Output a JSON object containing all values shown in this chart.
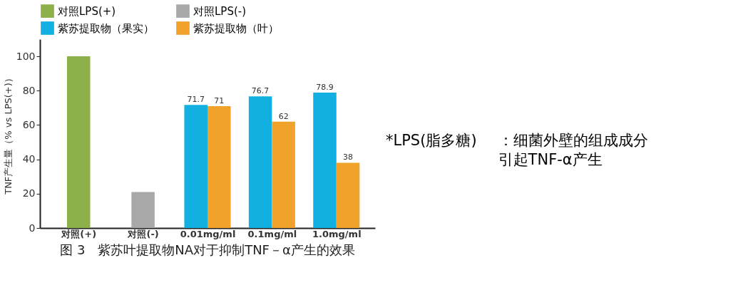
{
  "chart_data": {
    "type": "bar",
    "title": "图 3　紫苏叶提取物NA对于抑制TNF－α产生的效果",
    "ylabel": "TNF产生量（% vs LPS(+)）",
    "categories": [
      "对照(+)",
      "对照(-)",
      "0.01mg/ml",
      "0.1mg/ml",
      "1.0mg/ml"
    ],
    "series": [
      {
        "name": "对照LPS(+)",
        "color": "#8db04a",
        "values": [
          100,
          null,
          null,
          null,
          null
        ]
      },
      {
        "name": "对照LPS(-)",
        "color": "#a8a8a8",
        "values": [
          null,
          21,
          null,
          null,
          null
        ]
      },
      {
        "name": "紫苏提取物（果实）",
        "color": "#12b0e0",
        "values": [
          null,
          null,
          71.7,
          76.7,
          78.9
        ],
        "value_labels": [
          null,
          null,
          "71.7",
          "76.7",
          "78.9"
        ]
      },
      {
        "name": "紫苏提取物（叶）",
        "color": "#f0a22a",
        "values": [
          null,
          null,
          71,
          62,
          38
        ],
        "value_labels": [
          null,
          null,
          "71",
          "62",
          "38"
        ]
      }
    ],
    "ylim": [
      0,
      110
    ],
    "yticks": [
      0,
      20,
      40,
      60,
      80,
      100
    ],
    "grid": false,
    "legend": "top",
    "annotations": [
      "*LPS(脂多糖)",
      "：细菌外壁的组成成分",
      "引起TNF-α产生"
    ]
  }
}
